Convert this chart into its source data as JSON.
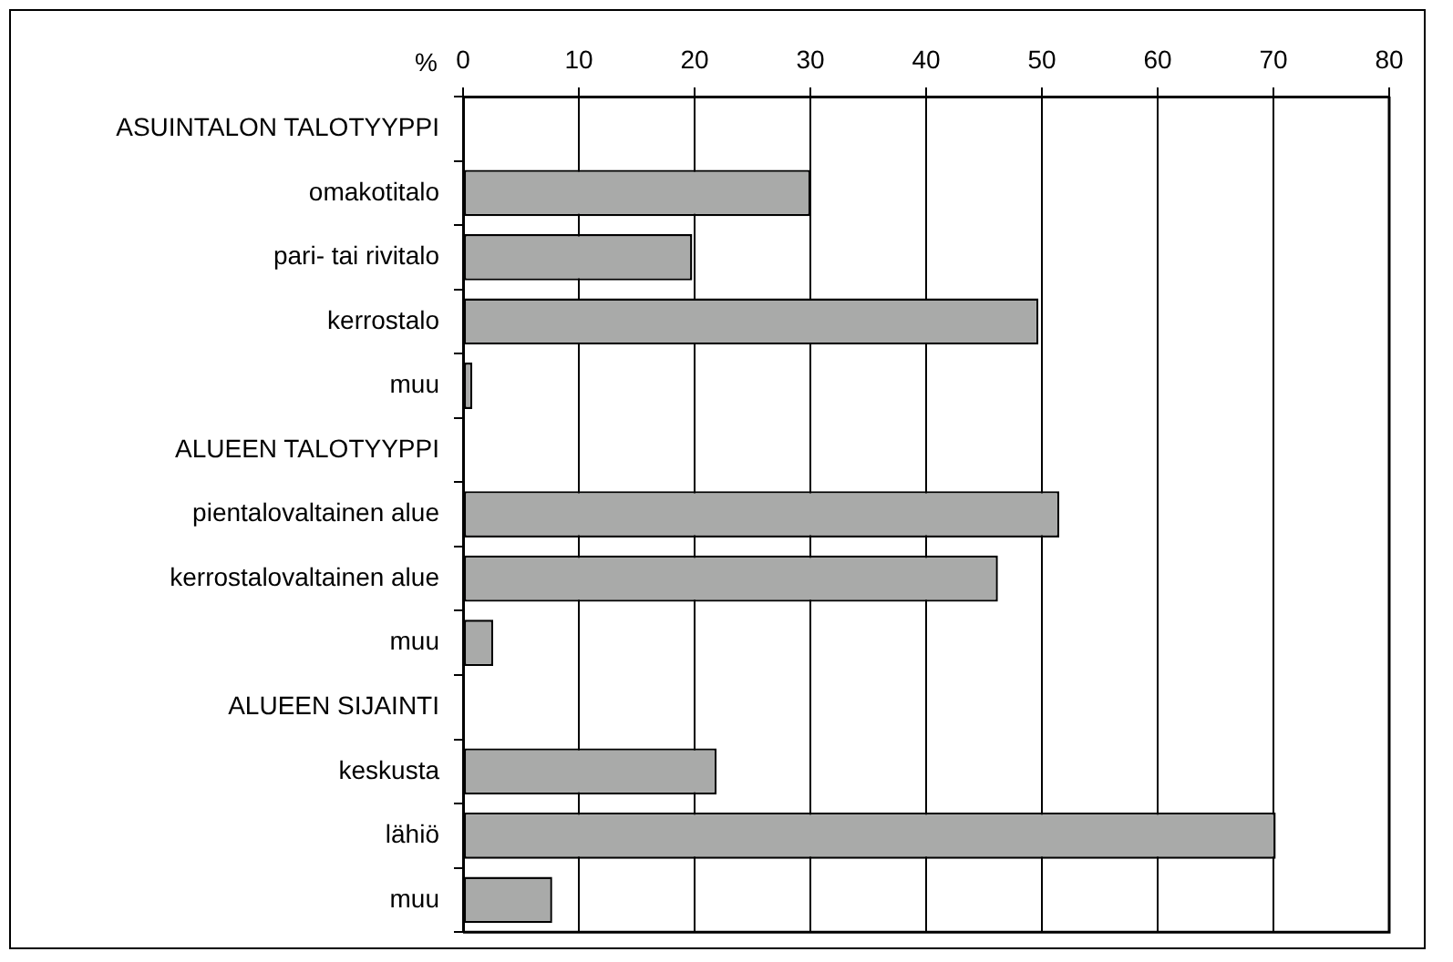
{
  "chart_data": {
    "type": "bar",
    "orientation": "horizontal",
    "xlabel": "%",
    "categories": [
      "ASUINTALON TALOTYYPPI",
      "omakotitalo",
      "pari- tai rivitalo",
      "kerrostalo",
      "muu",
      "ALUEEN TALOTYYPPI",
      "pientalovaltainen alue",
      "kerrostalovaltainen alue",
      "muu",
      "ALUEEN SIJAINTI",
      "keskusta",
      "lähiö",
      "muu"
    ],
    "values": [
      null,
      30,
      19.8,
      49.7,
      0.8,
      null,
      51.5,
      46.2,
      2.6,
      null,
      21.9,
      70.2,
      7.7
    ],
    "color": "#a9aaa9",
    "xlim": [
      0,
      80
    ],
    "xticks": [
      0,
      10,
      20,
      30,
      40,
      50,
      60,
      70,
      80
    ],
    "grid": "x",
    "legend": false
  }
}
